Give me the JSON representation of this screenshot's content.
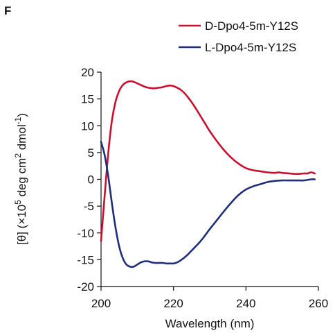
{
  "panel_label": "F",
  "chart_data": {
    "type": "line",
    "xlabel": "Wavelength (nm)",
    "ylabel_parts": {
      "prefix": "[θ] (×10",
      "exp1": "5",
      "mid": " deg cm",
      "exp2": "2",
      "mid2": " dmol",
      "exp3": "-1",
      "suffix": ")"
    },
    "xlim": [
      200,
      260
    ],
    "ylim": [
      -20,
      20
    ],
    "x_ticks": [
      200,
      220,
      240,
      260
    ],
    "y_ticks": [
      20,
      15,
      10,
      5,
      0,
      -5,
      -10,
      -15,
      -20
    ],
    "legend_position": "top-right",
    "series": [
      {
        "name": "D-Dpo4-5m-Y12S",
        "color": "#c8102e",
        "x": [
          200,
          201,
          202,
          203,
          204,
          205,
          206,
          207,
          208,
          209,
          210,
          211,
          212,
          213,
          214,
          215,
          216,
          217,
          218,
          219,
          220,
          221,
          222,
          223,
          224,
          225,
          226,
          227,
          228,
          229,
          230,
          232,
          234,
          236,
          238,
          240,
          242,
          244,
          246,
          248,
          249,
          250,
          252,
          254,
          256,
          257,
          258,
          259
        ],
        "y": [
          -11.5,
          -3,
          5,
          11,
          14.5,
          16.5,
          17.6,
          18.1,
          18.3,
          18.2,
          17.9,
          17.6,
          17.3,
          17.1,
          17.0,
          17.0,
          17.1,
          17.2,
          17.4,
          17.5,
          17.4,
          17.1,
          16.7,
          16.1,
          15.3,
          14.4,
          13.4,
          12.3,
          11.2,
          10.1,
          9.0,
          7.1,
          5.4,
          4.0,
          2.9,
          2.1,
          1.7,
          1.5,
          1.3,
          1.2,
          1.3,
          1.2,
          1.1,
          1.0,
          1.1,
          1.1,
          1.3,
          1.1
        ]
      },
      {
        "name": "L-Dpo4-5m-Y12S",
        "color": "#1e2e7a",
        "x": [
          200,
          201,
          202,
          203,
          204,
          205,
          206,
          207,
          208,
          209,
          210,
          211,
          212,
          213,
          214,
          215,
          216,
          217,
          218,
          219,
          220,
          221,
          222,
          223,
          224,
          225,
          226,
          227,
          228,
          229,
          230,
          232,
          234,
          236,
          238,
          240,
          242,
          244,
          246,
          248,
          250,
          252,
          254,
          256,
          258,
          259
        ],
        "y": [
          7.0,
          4.5,
          0.5,
          -4.5,
          -9.0,
          -12.5,
          -14.7,
          -15.9,
          -16.3,
          -16.3,
          -15.9,
          -15.5,
          -15.3,
          -15.3,
          -15.5,
          -15.6,
          -15.6,
          -15.6,
          -15.7,
          -15.7,
          -15.7,
          -15.5,
          -15.1,
          -14.6,
          -14.0,
          -13.3,
          -12.6,
          -11.9,
          -11.1,
          -10.2,
          -9.3,
          -7.6,
          -5.9,
          -4.3,
          -2.9,
          -1.9,
          -1.3,
          -0.9,
          -0.5,
          -0.3,
          -0.2,
          -0.2,
          -0.2,
          -0.2,
          0.0,
          0.0
        ]
      }
    ]
  }
}
